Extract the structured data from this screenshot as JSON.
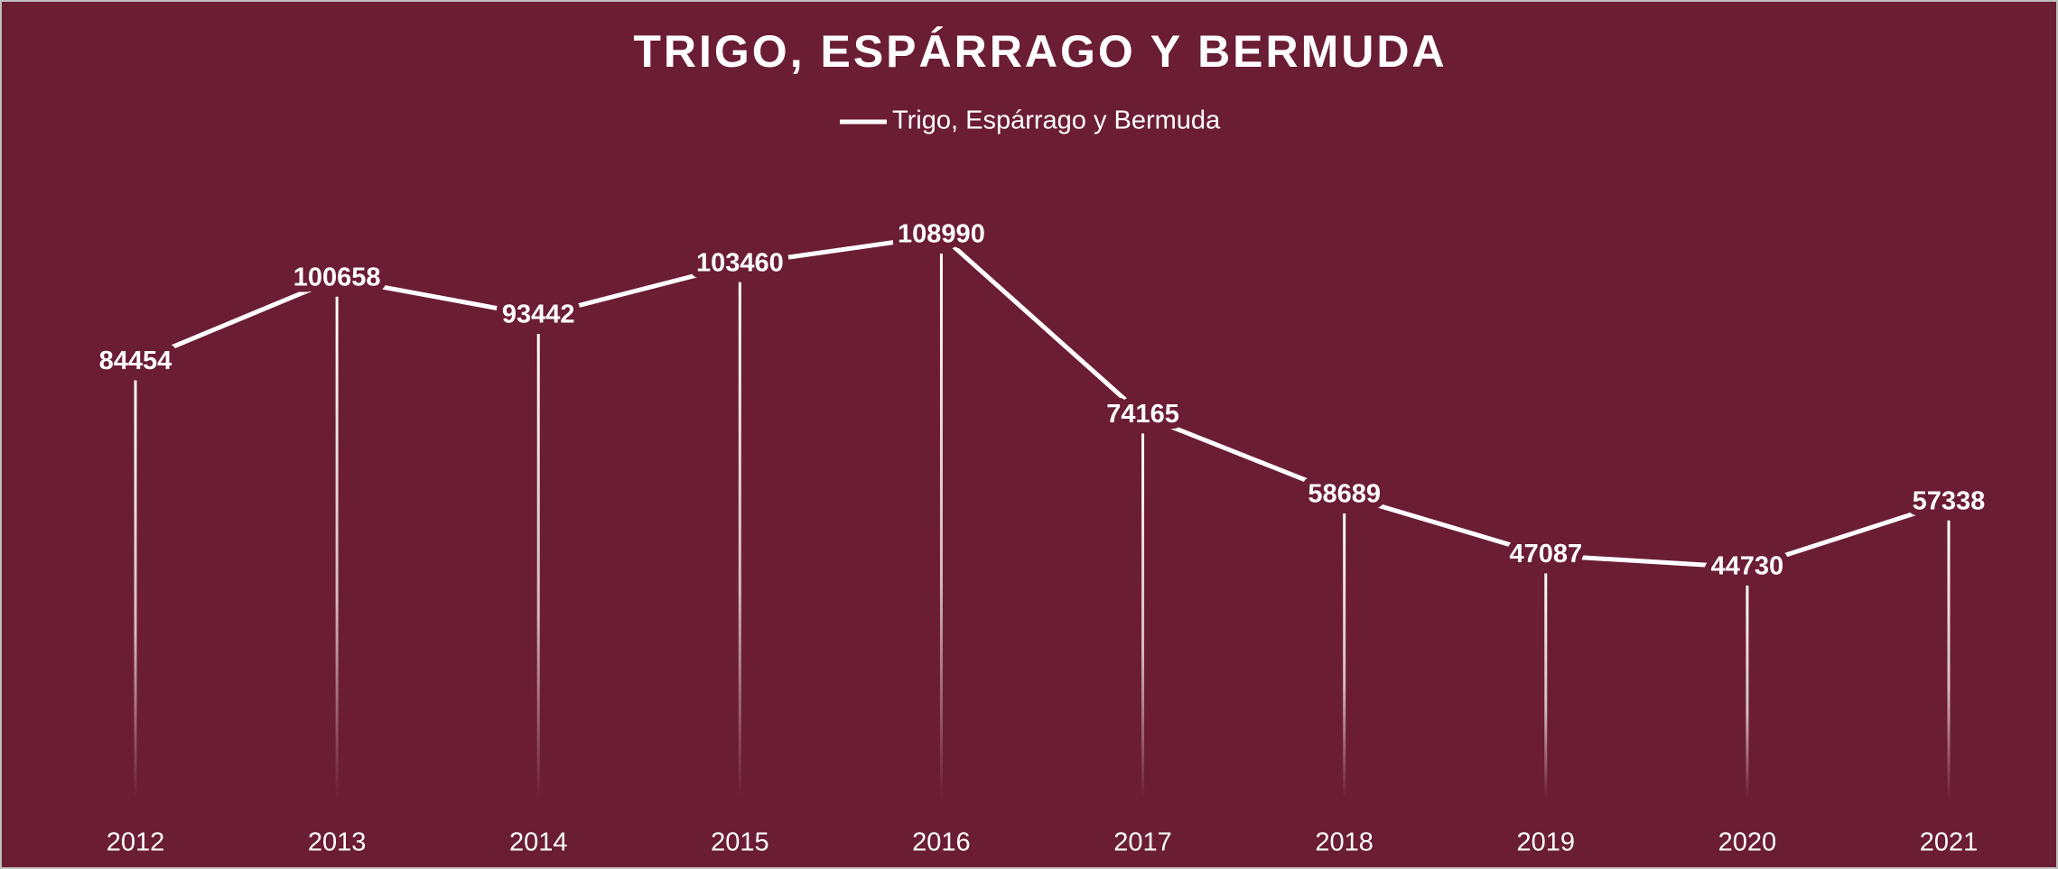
{
  "chart_data": {
    "type": "line",
    "title": "TRIGO, ESPÁRRAGO Y BERMUDA",
    "categories": [
      "2012",
      "2013",
      "2014",
      "2015",
      "2016",
      "2017",
      "2018",
      "2019",
      "2020",
      "2021"
    ],
    "series": [
      {
        "name": "Trigo, Espárrago y Bermuda",
        "color": "#ffffff",
        "values": [
          84454,
          100658,
          93442,
          103460,
          108990,
          74165,
          58689,
          47087,
          44730,
          57338
        ]
      }
    ],
    "ylim": [
      0,
      120000
    ],
    "legend": "top"
  }
}
